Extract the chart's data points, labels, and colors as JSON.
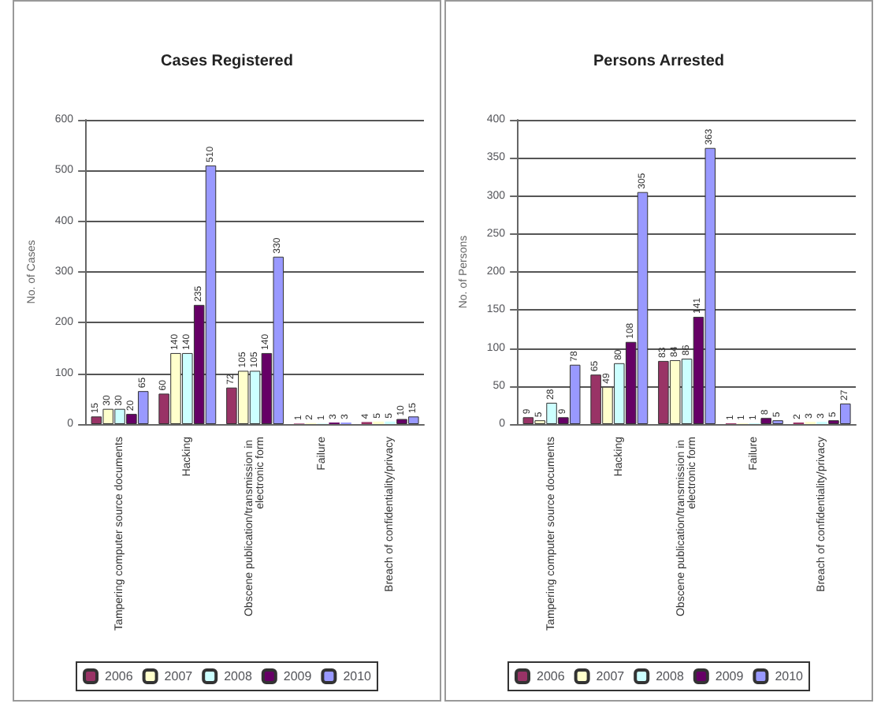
{
  "chart_data": [
    {
      "type": "bar",
      "title": "Cases Registered",
      "ylabel": "No. of Cases",
      "categories": [
        "Tampering computer source documents",
        "Hacking",
        "Obscene publication/transmission in electronic form",
        "Failure",
        "Breach of confidentiality/privacy"
      ],
      "series": [
        {
          "name": "2006",
          "color": "#993366",
          "values": [
            15,
            60,
            72,
            1,
            4
          ]
        },
        {
          "name": "2007",
          "color": "#ffffcc",
          "values": [
            30,
            140,
            105,
            2,
            5
          ]
        },
        {
          "name": "2008",
          "color": "#ccffff",
          "values": [
            30,
            140,
            105,
            1,
            5
          ]
        },
        {
          "name": "2009",
          "color": "#660066",
          "values": [
            20,
            235,
            140,
            3,
            10
          ]
        },
        {
          "name": "2010",
          "color": "#9999ff",
          "values": [
            65,
            510,
            330,
            3,
            15
          ]
        }
      ],
      "ylim": [
        0,
        600
      ],
      "yticks": [
        0,
        100,
        200,
        300,
        400,
        500,
        600
      ],
      "grid": "y",
      "legend": "bottom",
      "data_labels": true
    },
    {
      "type": "bar",
      "title": "Persons Arrested",
      "ylabel": "No. of Persons",
      "categories": [
        "Tampering computer source documents",
        "Hacking",
        "Obscene publication/transmission in electronic form",
        "Failure",
        "Breach of confidentiality/privacy"
      ],
      "series": [
        {
          "name": "2006",
          "color": "#993366",
          "values": [
            9,
            65,
            83,
            1,
            2
          ]
        },
        {
          "name": "2007",
          "color": "#ffffcc",
          "values": [
            5,
            49,
            84,
            1,
            3
          ]
        },
        {
          "name": "2008",
          "color": "#ccffff",
          "values": [
            28,
            80,
            86,
            1,
            3
          ]
        },
        {
          "name": "2009",
          "color": "#660066",
          "values": [
            9,
            108,
            141,
            8,
            5
          ]
        },
        {
          "name": "2010",
          "color": "#9999ff",
          "values": [
            78,
            305,
            363,
            5,
            27
          ]
        }
      ],
      "ylim": [
        0,
        400
      ],
      "yticks": [
        0,
        50,
        100,
        150,
        200,
        250,
        300,
        350,
        400
      ],
      "grid": "y",
      "legend": "bottom",
      "data_labels": true
    }
  ]
}
